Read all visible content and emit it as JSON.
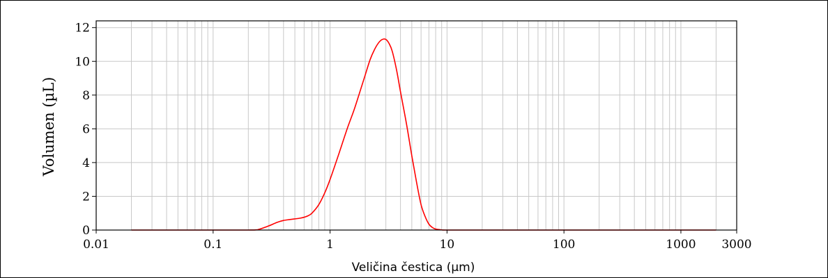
{
  "chart_data": {
    "type": "line",
    "title": "",
    "xlabel": "Veličina čestica (µm)",
    "ylabel": "Volumen (µL)",
    "x_scale": "log",
    "xlim": [
      0.01,
      3000
    ],
    "ylim": [
      0,
      12.4
    ],
    "grid": true,
    "legend": "none",
    "colors": {
      "line": "#ff0000",
      "grid": "#c8c8c8",
      "axes": "#000000"
    },
    "x_tick_labels": [
      "0.01",
      "0.1",
      "1",
      "10",
      "100",
      "1000",
      "3000"
    ],
    "x_tick_values": [
      0.01,
      0.1,
      1,
      10,
      100,
      1000,
      3000
    ],
    "y_tick_labels": [
      "0",
      "2",
      "4",
      "6",
      "8",
      "10",
      "12"
    ],
    "y_tick_values": [
      0,
      2,
      4,
      6,
      8,
      10,
      12
    ],
    "series": [
      {
        "color": "#ff0000",
        "x": [
          0.02,
          0.1,
          0.2,
          0.24,
          0.3,
          0.35,
          0.4,
          0.45,
          0.5,
          0.55,
          0.6,
          0.65,
          0.7,
          0.8,
          0.9,
          1.0,
          1.2,
          1.4,
          1.6,
          1.8,
          2.0,
          2.2,
          2.4,
          2.6,
          2.8,
          3.0,
          3.2,
          3.4,
          3.7,
          4.0,
          4.5,
          5.0,
          5.5,
          6.0,
          6.5,
          7.0,
          7.5,
          8.0,
          9.0,
          10.0,
          20,
          100,
          1000,
          2000
        ],
        "y": [
          0,
          0,
          0,
          0.02,
          0.25,
          0.45,
          0.57,
          0.62,
          0.66,
          0.7,
          0.76,
          0.85,
          1.0,
          1.5,
          2.2,
          3.0,
          4.6,
          6.0,
          7.1,
          8.2,
          9.2,
          10.1,
          10.7,
          11.1,
          11.3,
          11.3,
          11.05,
          10.6,
          9.5,
          8.2,
          6.3,
          4.4,
          2.8,
          1.5,
          0.8,
          0.35,
          0.15,
          0.06,
          0.01,
          0,
          0,
          0,
          0,
          0
        ]
      }
    ]
  }
}
